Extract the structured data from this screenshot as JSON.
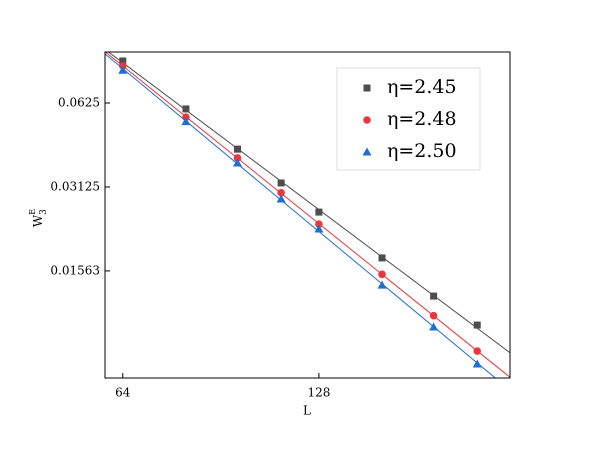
{
  "chart_data": {
    "type": "scatter",
    "xlabel": "L",
    "ylabel": {
      "base": "W",
      "sup": "E",
      "sub": "3"
    },
    "x": [
      64,
      80,
      96,
      112,
      128,
      160,
      192,
      224
    ],
    "series": [
      {
        "name": "η=2.45",
        "color": "#4d4d4d",
        "marker": "square",
        "values": [
          0.0884,
          0.0595,
          0.0427,
          0.0323,
          0.0254,
          0.0174,
          0.0127,
          0.01
        ]
      },
      {
        "name": "η=2.48",
        "color": "#e8383d",
        "marker": "circle",
        "values": [
          0.0849,
          0.0556,
          0.0397,
          0.0298,
          0.023,
          0.0152,
          0.0108,
          0.00807
        ]
      },
      {
        "name": "η=2.50",
        "color": "#1f6fd1",
        "marker": "triangle",
        "values": [
          0.0819,
          0.0536,
          0.0381,
          0.0283,
          0.0221,
          0.0139,
          0.00984,
          0.00725
        ]
      }
    ],
    "xscale": "log",
    "yscale": "log",
    "fit_lines": true,
    "xlim": [
      60.1,
      251.5
    ],
    "ylim": [
      0.00646,
      0.0952
    ],
    "xticks": [
      64,
      128
    ],
    "yticks": [
      0.0625,
      0.03125,
      0.01563
    ],
    "legend": "upper right"
  }
}
